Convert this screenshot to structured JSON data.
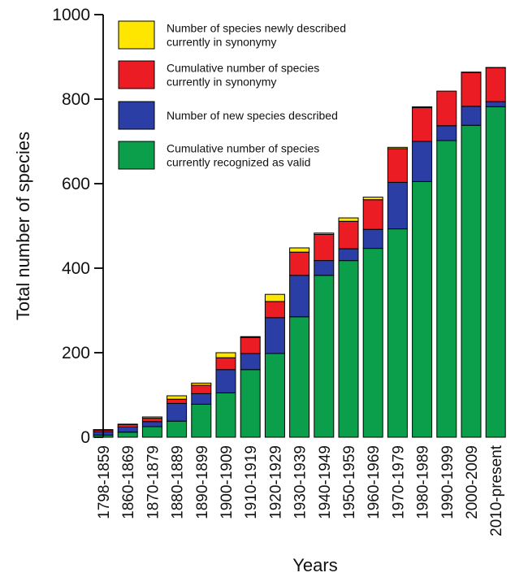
{
  "chart_data": {
    "type": "bar",
    "stacked": true,
    "title": "",
    "xlabel": "Years",
    "ylabel": "Total number of species",
    "ylim": [
      0,
      1000
    ],
    "yticks": [
      0,
      200,
      400,
      600,
      800,
      1000
    ],
    "grid": false,
    "legend_position": "top-left",
    "categories": [
      "1798-1859",
      "1860-1869",
      "1870-1879",
      "1880-1889",
      "1890-1899",
      "1900-1909",
      "1910-1919",
      "1920-1929",
      "1930-1939",
      "1940-1949",
      "1950-1959",
      "1960-1969",
      "1970-1979",
      "1980-1989",
      "1990-1999",
      "2000-2009",
      "2010-present"
    ],
    "series": [
      {
        "name": "Cumulative number of species currently recognized as valid",
        "color": "#0b9f4c",
        "values": [
          5,
          12,
          25,
          38,
          78,
          105,
          160,
          198,
          285,
          383,
          418,
          447,
          493,
          605,
          702,
          738,
          782
        ]
      },
      {
        "name": "Number of new species described",
        "color": "#2b3ea6",
        "values": [
          8,
          12,
          12,
          42,
          25,
          55,
          38,
          85,
          98,
          35,
          28,
          45,
          110,
          95,
          35,
          45,
          12
        ]
      },
      {
        "name": "Cumulative number of species currently in synonymy",
        "color": "#ec1c24",
        "values": [
          4,
          6,
          8,
          10,
          20,
          28,
          38,
          38,
          55,
          62,
          65,
          70,
          80,
          80,
          82,
          80,
          80
        ]
      },
      {
        "name": "Number of species newly described currently in synonymy",
        "color": "#ffe600",
        "values": [
          1,
          1,
          3,
          8,
          5,
          12,
          2,
          17,
          10,
          3,
          8,
          6,
          3,
          2,
          0,
          1,
          1
        ]
      }
    ]
  },
  "legend": [
    {
      "lines": [
        "Number of species newly described",
        "currently in synonymy"
      ],
      "color": "#ffe600"
    },
    {
      "lines": [
        "Cumulative number of species",
        "currently in synonymy"
      ],
      "color": "#ec1c24"
    },
    {
      "lines": [
        "Number of new species described"
      ],
      "color": "#2b3ea6"
    },
    {
      "lines": [
        "Cumulative number of species",
        "currently recognized as valid"
      ],
      "color": "#0b9f4c"
    }
  ]
}
